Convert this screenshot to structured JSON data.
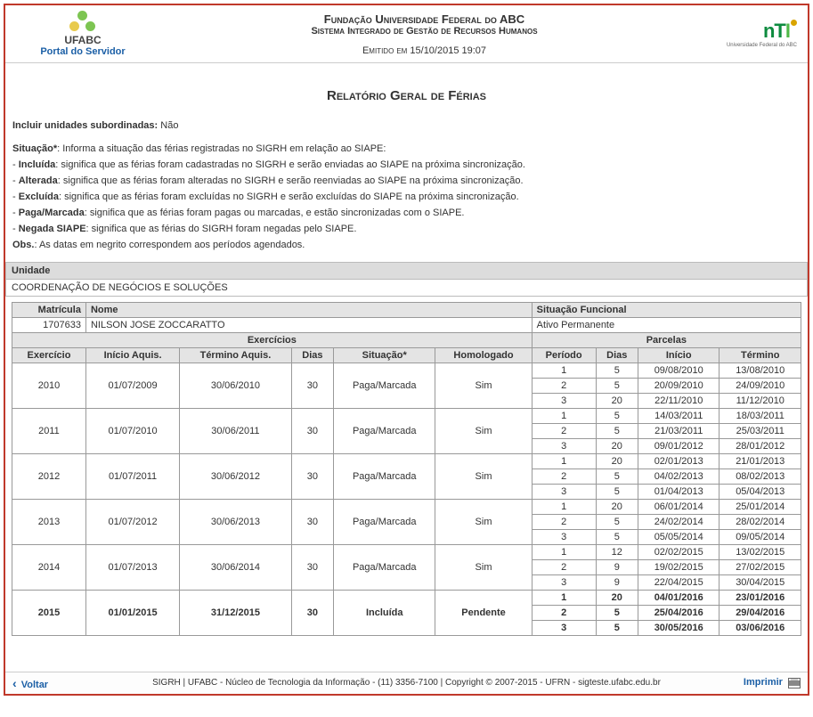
{
  "header": {
    "portal_label": "Portal do Servidor",
    "ufabc_label": "UFABC",
    "institution": "Fundação Universidade Federal do ABC",
    "system": "Sistema Integrado de Gestão de Recursos Humanos",
    "emitted": "Emitido em 15/10/2015 19:07",
    "nti_sub": "Universidade Federal do ABC"
  },
  "report_title": "Relatório Geral de Férias",
  "include_sub": {
    "label": "Incluir unidades subordinadas:",
    "value": "Não"
  },
  "glossary": {
    "intro_label": "Situação*",
    "intro_text": ": Informa a situação das férias registradas no SIGRH em relação ao SIAPE:",
    "items": [
      {
        "term": "Incluída",
        "desc": ": significa que as férias foram cadastradas no SIGRH e serão enviadas ao SIAPE na próxima sincronização."
      },
      {
        "term": "Alterada",
        "desc": ": significa que as férias foram alteradas no SIGRH e serão reenviadas ao SIAPE na próxima sincronização."
      },
      {
        "term": "Excluída",
        "desc": ": significa que as férias foram excluídas no SIGRH e serão excluídas do SIAPE na próxima sincronização."
      },
      {
        "term": "Paga/Marcada",
        "desc": ": significa que as férias foram pagas ou marcadas, e estão sincronizadas com o SIAPE."
      },
      {
        "term": "Negada SIAPE",
        "desc": ": significa que as férias do SIGRH foram negadas pelo SIAPE."
      }
    ],
    "obs_label": "Obs.",
    "obs_text": ": As datas em negrito correspondem aos períodos agendados."
  },
  "unit_section_label": "Unidade",
  "unit_name": "COORDENAÇÃO DE NEGÓCIOS E SOLUÇÕES",
  "person_headers": {
    "matricula": "Matrícula",
    "nome": "Nome",
    "situacao": "Situação Funcional"
  },
  "person": {
    "matricula": "1707633",
    "nome": "NILSON JOSE ZOCCARATTO",
    "situacao": "Ativo Permanente"
  },
  "table_headers": {
    "exercicios_group": "Exercícios",
    "parcelas_group": "Parcelas",
    "exercicio": "Exercício",
    "inicio_aquis": "Início Aquis.",
    "termino_aquis": "Término Aquis.",
    "dias": "Dias",
    "situacao": "Situação*",
    "homologado": "Homologado",
    "periodo": "Período",
    "p_dias": "Dias",
    "inicio": "Início",
    "termino": "Término"
  },
  "exercicios": [
    {
      "exercicio": "2010",
      "inicio_aquis": "01/07/2009",
      "termino_aquis": "30/06/2010",
      "dias": "30",
      "situacao": "Paga/Marcada",
      "homologado": "Sim",
      "parcelas": [
        {
          "periodo": "1",
          "dias": "5",
          "inicio": "09/08/2010",
          "termino": "13/08/2010",
          "bold": false
        },
        {
          "periodo": "2",
          "dias": "5",
          "inicio": "20/09/2010",
          "termino": "24/09/2010",
          "bold": false
        },
        {
          "periodo": "3",
          "dias": "20",
          "inicio": "22/11/2010",
          "termino": "11/12/2010",
          "bold": false
        }
      ]
    },
    {
      "exercicio": "2011",
      "inicio_aquis": "01/07/2010",
      "termino_aquis": "30/06/2011",
      "dias": "30",
      "situacao": "Paga/Marcada",
      "homologado": "Sim",
      "parcelas": [
        {
          "periodo": "1",
          "dias": "5",
          "inicio": "14/03/2011",
          "termino": "18/03/2011",
          "bold": false
        },
        {
          "periodo": "2",
          "dias": "5",
          "inicio": "21/03/2011",
          "termino": "25/03/2011",
          "bold": false
        },
        {
          "periodo": "3",
          "dias": "20",
          "inicio": "09/01/2012",
          "termino": "28/01/2012",
          "bold": false
        }
      ]
    },
    {
      "exercicio": "2012",
      "inicio_aquis": "01/07/2011",
      "termino_aquis": "30/06/2012",
      "dias": "30",
      "situacao": "Paga/Marcada",
      "homologado": "Sim",
      "parcelas": [
        {
          "periodo": "1",
          "dias": "20",
          "inicio": "02/01/2013",
          "termino": "21/01/2013",
          "bold": false
        },
        {
          "periodo": "2",
          "dias": "5",
          "inicio": "04/02/2013",
          "termino": "08/02/2013",
          "bold": false
        },
        {
          "periodo": "3",
          "dias": "5",
          "inicio": "01/04/2013",
          "termino": "05/04/2013",
          "bold": false
        }
      ]
    },
    {
      "exercicio": "2013",
      "inicio_aquis": "01/07/2012",
      "termino_aquis": "30/06/2013",
      "dias": "30",
      "situacao": "Paga/Marcada",
      "homologado": "Sim",
      "parcelas": [
        {
          "periodo": "1",
          "dias": "20",
          "inicio": "06/01/2014",
          "termino": "25/01/2014",
          "bold": false
        },
        {
          "periodo": "2",
          "dias": "5",
          "inicio": "24/02/2014",
          "termino": "28/02/2014",
          "bold": false
        },
        {
          "periodo": "3",
          "dias": "5",
          "inicio": "05/05/2014",
          "termino": "09/05/2014",
          "bold": false
        }
      ]
    },
    {
      "exercicio": "2014",
      "inicio_aquis": "01/07/2013",
      "termino_aquis": "30/06/2014",
      "dias": "30",
      "situacao": "Paga/Marcada",
      "homologado": "Sim",
      "parcelas": [
        {
          "periodo": "1",
          "dias": "12",
          "inicio": "02/02/2015",
          "termino": "13/02/2015",
          "bold": false
        },
        {
          "periodo": "2",
          "dias": "9",
          "inicio": "19/02/2015",
          "termino": "27/02/2015",
          "bold": false
        },
        {
          "periodo": "3",
          "dias": "9",
          "inicio": "22/04/2015",
          "termino": "30/04/2015",
          "bold": false
        }
      ]
    },
    {
      "exercicio": "2015",
      "inicio_aquis": "01/01/2015",
      "termino_aquis": "31/12/2015",
      "dias": "30",
      "situacao": "Incluída",
      "homologado": "Pendente",
      "parcelas": [
        {
          "periodo": "1",
          "dias": "20",
          "inicio": "04/01/2016",
          "termino": "23/01/2016",
          "bold": true
        },
        {
          "periodo": "2",
          "dias": "5",
          "inicio": "25/04/2016",
          "termino": "29/04/2016",
          "bold": true
        },
        {
          "periodo": "3",
          "dias": "5",
          "inicio": "30/05/2016",
          "termino": "03/06/2016",
          "bold": true
        }
      ]
    }
  ],
  "footer": {
    "back": "Voltar",
    "center": "SIGRH | UFABC - Núcleo de Tecnologia da Informação - (11) 3356-7100 | Copyright © 2007-2015 - UFRN - sigteste.ufabc.edu.br",
    "print": "Imprimir"
  },
  "colors": {
    "frame_border": "#c0392b",
    "header_gray": "#e4e4e4",
    "link_blue": "#1b5fa6"
  }
}
